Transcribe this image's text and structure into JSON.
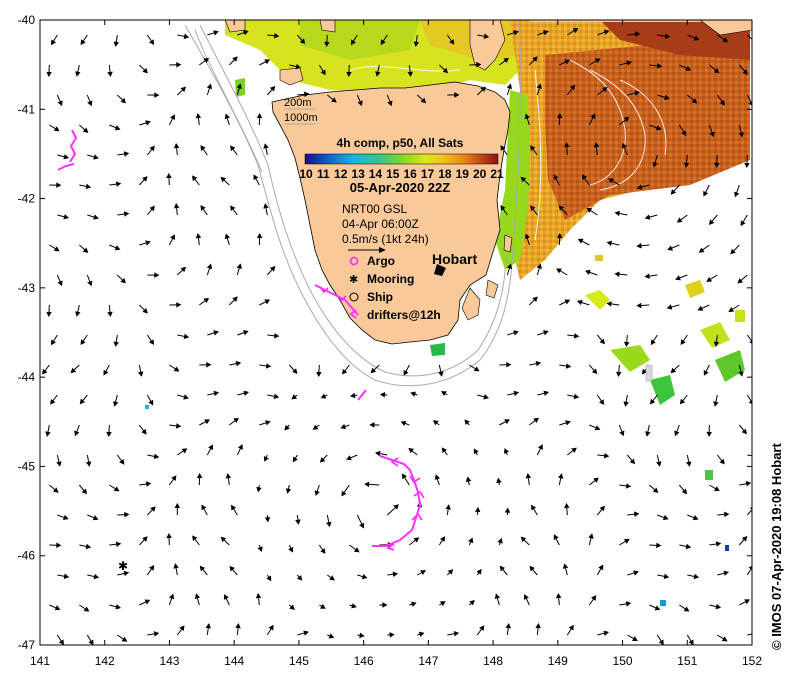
{
  "map": {
    "lon_range": [
      141,
      152
    ],
    "lat_range": [
      -47,
      -40
    ],
    "lon_ticks": [
      141,
      142,
      143,
      144,
      145,
      146,
      147,
      148,
      149,
      150,
      151,
      152
    ],
    "lat_ticks": [
      -40,
      -41,
      -42,
      -43,
      -44,
      -45,
      -46,
      -47
    ],
    "lon_tick_labels": [
      "141",
      "142",
      "143",
      "144",
      "145",
      "146",
      "147",
      "148",
      "149",
      "150",
      "151",
      "152"
    ],
    "lat_tick_labels": [
      "-40",
      "-41",
      "-42",
      "-43",
      "-44",
      "-45",
      "-46",
      "-47"
    ],
    "land_color": "#f9c99a",
    "contour_labels": [
      "200m",
      "1000m"
    ],
    "sst_legend": {
      "title": "4h comp, p50, All Sats",
      "scale_min": 10,
      "scale_max": 21,
      "scale_labels": [
        "10",
        "11",
        "12",
        "13",
        "14",
        "15",
        "16",
        "17",
        "18",
        "19",
        "20",
        "21"
      ],
      "date": "05-Apr-2020 22Z"
    },
    "current_legend": {
      "product": "NRT00 GSL",
      "time": "04-Apr 06:00Z",
      "scale": "0.5m/s (1kt 24h)"
    },
    "symbols_legend": {
      "argo": "Argo",
      "mooring": "Mooring",
      "ship": "Ship",
      "drifters": "drifters@12h",
      "argo_color": "#ff33ff",
      "drifter_color": "#ff33ff"
    },
    "city": {
      "name": "Hobart",
      "lon": 147.33,
      "lat": -42.88
    },
    "mooring_location": {
      "lon": 142.3,
      "lat": -46.1
    },
    "credit": "© IMOS 07-Apr-2020 19:08 Hobart"
  }
}
